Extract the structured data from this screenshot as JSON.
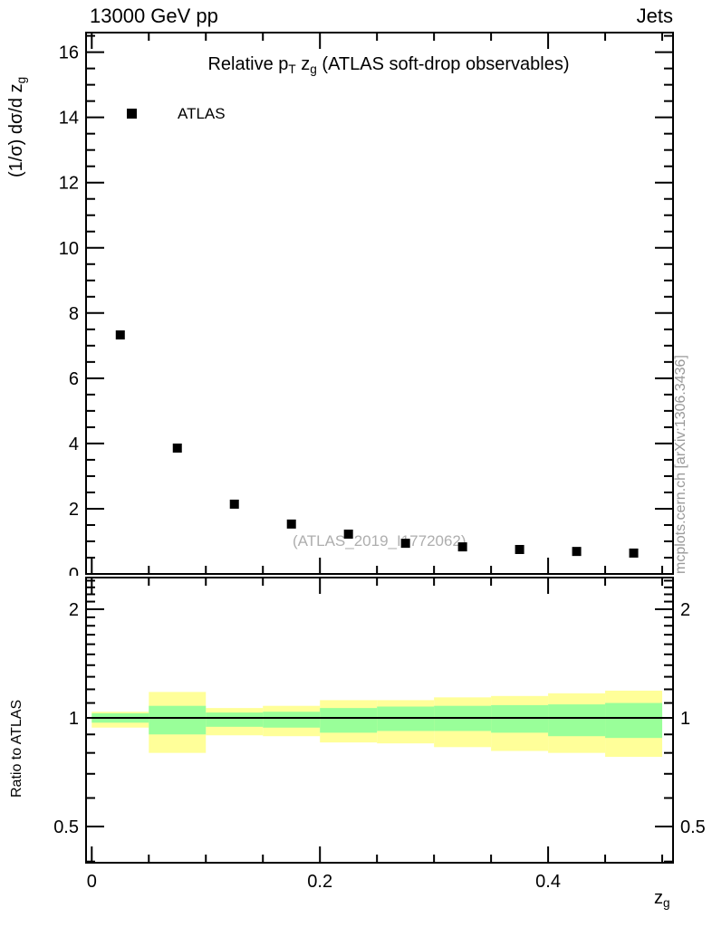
{
  "header": {
    "left": "13000 GeV pp",
    "right": "Jets"
  },
  "watermark": {
    "analysis": "(ATLAS_2019_I1772062)",
    "side": "mcplots.cern.ch [arXiv:1306.3436]"
  },
  "colors": {
    "band_outer": "#ffff99",
    "band_inner": "#99ff99",
    "marker": "#000000",
    "frame": "#000000",
    "watermark": "#aeaeae"
  },
  "chart_data": [
    {
      "type": "scatter",
      "title_rich": [
        {
          "t": "Relative p"
        },
        {
          "t": "T",
          "sub": true
        },
        {
          "t": " z"
        },
        {
          "t": "g",
          "sub": true
        },
        {
          "t": " (ATLAS soft-drop observables)"
        }
      ],
      "ylabel_rich": [
        {
          "t": "(1/σ) dσ/d z"
        },
        {
          "t": "g",
          "sub": true
        }
      ],
      "legend": [
        {
          "label": "ATLAS",
          "marker": "filled-square",
          "color": "#000000"
        }
      ],
      "x": [
        0.025,
        0.075,
        0.125,
        0.175,
        0.225,
        0.275,
        0.325,
        0.375,
        0.425,
        0.475
      ],
      "y": [
        7.33,
        3.86,
        2.14,
        1.53,
        1.22,
        0.94,
        0.83,
        0.75,
        0.69,
        0.64
      ],
      "xlim": [
        -0.005,
        0.5095
      ],
      "ylim": [
        0,
        16.6
      ],
      "xticks_major": [
        0,
        0.2,
        0.4
      ],
      "xtick_minor_step": 0.05,
      "ytick_major_step": 2,
      "ytick_minor_step": 0.5,
      "ytick_labels": [
        "0",
        "2",
        "4",
        "6",
        "8",
        "10",
        "12",
        "14",
        "16"
      ],
      "grid": false,
      "legend_position": "top-left-inside"
    },
    {
      "type": "band-ratio",
      "ylabel": "Ratio to ATLAS",
      "xlabel_rich": [
        {
          "t": "z"
        },
        {
          "t": "g",
          "sub": true
        }
      ],
      "yscale": "log",
      "xlim": [
        -0.005,
        0.5095
      ],
      "ylim": [
        0.397,
        2.448
      ],
      "yticks_major": [
        0.5,
        1,
        2
      ],
      "ytick_labels": [
        "0.5",
        "1",
        "2"
      ],
      "yticks_minor": [
        0.4,
        0.6,
        0.7,
        0.8,
        0.9,
        1.1,
        1.2,
        1.3,
        1.4,
        1.5,
        1.6,
        1.7,
        1.8,
        1.9,
        2.1,
        2.2,
        2.3,
        2.4
      ],
      "xticks_major": [
        0,
        0.2,
        0.4
      ],
      "xtick_labels": [
        "0",
        "0.2",
        "0.4"
      ],
      "xtick_minor_step": 0.05,
      "reference_line": 1.0,
      "bin_edges": [
        0,
        0.05,
        0.1,
        0.15,
        0.2,
        0.25,
        0.3,
        0.35,
        0.4,
        0.45,
        0.5
      ],
      "band_outer_lo": [
        0.94,
        0.8,
        0.895,
        0.89,
        0.855,
        0.85,
        0.83,
        0.81,
        0.8,
        0.78
      ],
      "band_outer_hi": [
        1.04,
        1.18,
        1.065,
        1.08,
        1.12,
        1.12,
        1.14,
        1.15,
        1.17,
        1.19
      ],
      "band_inner_lo": [
        0.97,
        0.9,
        0.945,
        0.94,
        0.91,
        0.92,
        0.92,
        0.91,
        0.89,
        0.88
      ],
      "band_inner_hi": [
        1.03,
        1.08,
        1.035,
        1.04,
        1.065,
        1.075,
        1.08,
        1.085,
        1.09,
        1.1
      ]
    }
  ]
}
